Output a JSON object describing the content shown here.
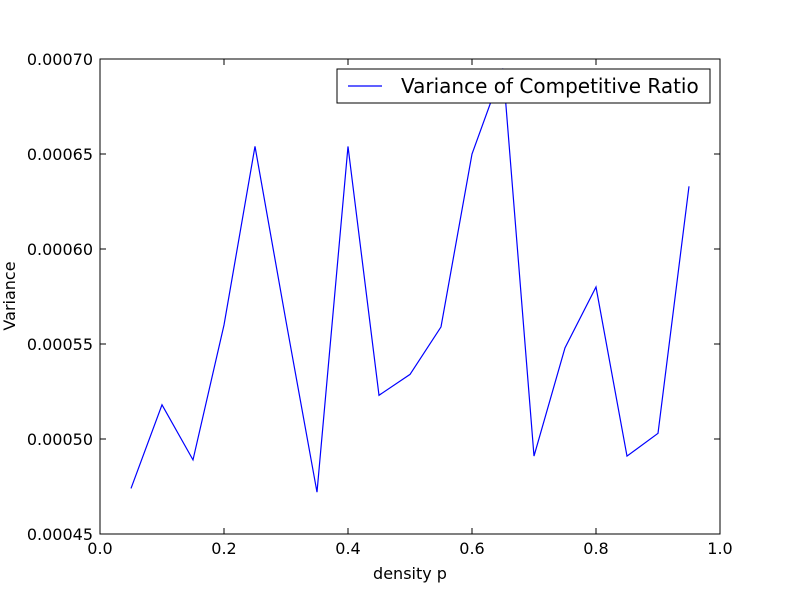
{
  "chart_data": {
    "type": "line",
    "title": "",
    "xlabel": "density p",
    "ylabel": "Variance",
    "xlim": [
      0.0,
      1.0
    ],
    "ylim": [
      0.00045,
      0.0007
    ],
    "xticks": [
      0.0,
      0.2,
      0.4,
      0.6,
      0.8,
      1.0
    ],
    "xtick_labels": [
      "0.0",
      "0.2",
      "0.4",
      "0.6",
      "0.8",
      "1.0"
    ],
    "yticks": [
      0.00045,
      0.0005,
      0.00055,
      0.0006,
      0.00065,
      0.0007
    ],
    "ytick_labels": [
      "0.00045",
      "0.00050",
      "0.00055",
      "0.00060",
      "0.00065",
      "0.00070"
    ],
    "grid": false,
    "legend_position": "top-right",
    "series": [
      {
        "name": "Variance of Competitive Ratio",
        "color": "#0000ff",
        "x": [
          0.05,
          0.1,
          0.15,
          0.2,
          0.25,
          0.3,
          0.35,
          0.4,
          0.45,
          0.5,
          0.55,
          0.6,
          0.65,
          0.7,
          0.75,
          0.8,
          0.85,
          0.9,
          0.95
        ],
        "y": [
          0.000474,
          0.000518,
          0.000489,
          0.00056,
          0.000654,
          0.000562,
          0.000472,
          0.000654,
          0.000523,
          0.000534,
          0.000559,
          0.00065,
          0.000695,
          0.000491,
          0.000548,
          0.00058,
          0.000491,
          0.000503,
          0.000633
        ]
      }
    ]
  }
}
